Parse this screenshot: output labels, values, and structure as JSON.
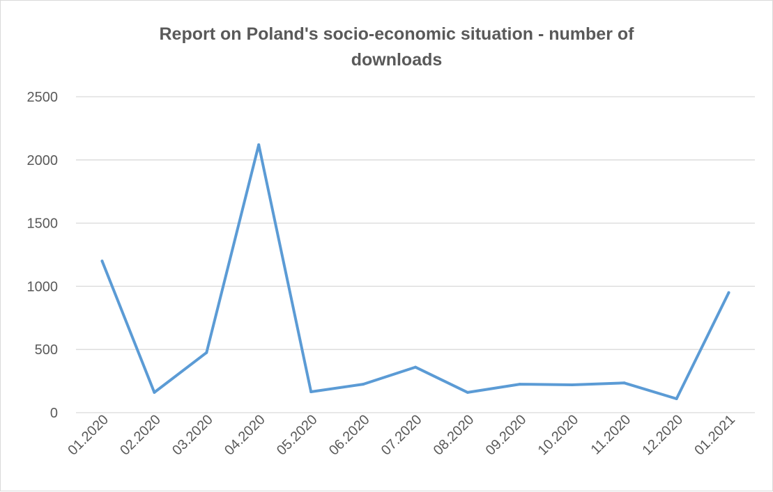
{
  "chart_data": {
    "type": "line",
    "title": "Report on Poland's socio-economic situation - number of downloads",
    "title_lines": [
      "Report on Poland's socio-economic situation - number of",
      "downloads"
    ],
    "xlabel": "",
    "ylabel": "",
    "categories": [
      "01.2020",
      "02.2020",
      "03.2020",
      "04.2020",
      "05.2020",
      "06.2020",
      "07.2020",
      "08.2020",
      "09.2020",
      "10.2020",
      "11.2020",
      "12.2020",
      "01.2021"
    ],
    "series": [
      {
        "values": [
          1200,
          160,
          475,
          2120,
          165,
          225,
          360,
          160,
          225,
          220,
          235,
          110,
          950
        ],
        "color": "#5b9bd5"
      }
    ],
    "ylim": [
      0,
      2500
    ],
    "yticks": [
      0,
      500,
      1000,
      1500,
      2000,
      2500
    ],
    "grid": true,
    "gridline_color": "#d9d9d9",
    "legend": "none"
  }
}
